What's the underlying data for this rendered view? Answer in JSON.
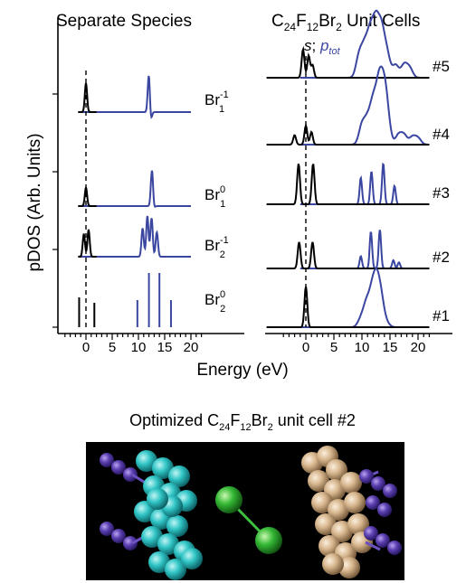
{
  "figure": {
    "left_panel_title": "Separate Species",
    "right_panel_title_parts": [
      "C",
      "24",
      "F",
      "12",
      "Br",
      "2",
      " Unit Cells"
    ],
    "series_annotation_s": "s",
    "series_annotation_sep": "; ",
    "series_annotation_p": "p",
    "series_annotation_p_sub": "tot",
    "ylabel": "pDOS (Arb. Units)",
    "xlabel": "Energy (eV)",
    "left_species": [
      {
        "base": "Br",
        "sup": "-1",
        "sub": "1"
      },
      {
        "base": "Br",
        "sup": "0",
        "sub": "1"
      },
      {
        "base": "Br",
        "sup": "-1",
        "sub": "2"
      },
      {
        "base": "Br",
        "sup": "0",
        "sub": "2"
      }
    ],
    "right_cells": [
      "#5",
      "#4",
      "#3",
      "#2",
      "#1"
    ],
    "structure_caption_parts": [
      "Optimized C",
      "24",
      "F",
      "12",
      "Br",
      "2",
      " unit cell #2"
    ]
  },
  "colors": {
    "s_series": "#000000",
    "p_series": "#3a46a0",
    "molecule_background": "#000000",
    "cyan_atoms": "#2fc4c4",
    "tan_atoms": "#d6b58c",
    "purple_atoms": "#5b3fb0",
    "green_atoms": "#34b834"
  },
  "chart_data": [
    {
      "type": "line",
      "title": "Separate Species",
      "xlabel": "Energy (eV)",
      "ylabel": "pDOS (Arb. Units)",
      "xlim": [
        -5,
        25
      ],
      "x_ticks": [
        0,
        5,
        10,
        15,
        20
      ],
      "fermi_line_x": 0,
      "series_names": [
        "s",
        "p_tot"
      ],
      "panels": [
        {
          "label": "Br1^-1",
          "s_peaks": [
            [
              0,
              0.7
            ]
          ],
          "p_peaks": [
            [
              12,
              1.0
            ],
            [
              12.3,
              -0.3
            ]
          ]
        },
        {
          "label": "Br1^0",
          "s_peaks": [
            [
              0,
              0.45
            ]
          ],
          "p_peaks": [
            [
              12.6,
              1.0
            ],
            [
              12.8,
              -0.2
            ]
          ]
        },
        {
          "label": "Br2^-1",
          "s_peaks": [
            [
              -0.4,
              0.55
            ],
            [
              0.5,
              0.65
            ]
          ],
          "p_peaks": [
            [
              10.8,
              0.7
            ],
            [
              11.7,
              1.0
            ],
            [
              12.5,
              0.95
            ],
            [
              13.5,
              0.6
            ]
          ]
        },
        {
          "label": "Br2^0",
          "s_peaks": [
            [
              -1.3,
              0.55
            ],
            [
              1.6,
              0.45
            ]
          ],
          "p_peaks": [
            [
              9.8,
              0.5
            ],
            [
              12,
              1.0
            ],
            [
              14,
              1.0
            ],
            [
              16.2,
              0.5
            ]
          ]
        }
      ]
    },
    {
      "type": "line",
      "title": "C24F12Br2 Unit Cells",
      "xlabel": "Energy (eV)",
      "xlim": [
        -5,
        25
      ],
      "x_ticks": [
        0,
        5,
        10,
        15,
        20
      ],
      "fermi_line_x": 0,
      "series_names": [
        "s",
        "p_tot"
      ],
      "panels": [
        {
          "label": "#5",
          "s_peaks": [
            [
              -0.5,
              0.45
            ],
            [
              0.5,
              0.35
            ],
            [
              1.2,
              0.2
            ]
          ],
          "p_band": [
            [
              9.5,
              0.35
            ],
            [
              10.5,
              0.45
            ],
            [
              11.5,
              0.65
            ],
            [
              12.5,
              0.8
            ],
            [
              13.5,
              0.7
            ],
            [
              14.5,
              0.35
            ],
            [
              16,
              0.2
            ],
            [
              17.5,
              0.2
            ],
            [
              18.5,
              0.15
            ]
          ]
        },
        {
          "label": "#4",
          "s_peaks": [
            [
              -2,
              0.15
            ],
            [
              0,
              0.3
            ],
            [
              1,
              0.2
            ]
          ],
          "p_band": [
            [
              10,
              0.3
            ],
            [
              11,
              0.35
            ],
            [
              12,
              0.6
            ],
            [
              13,
              0.8
            ],
            [
              13.8,
              0.7
            ],
            [
              14.5,
              0.45
            ],
            [
              16.5,
              0.15
            ],
            [
              17.5,
              0.15
            ],
            [
              19,
              0.12
            ],
            [
              20,
              0.1
            ]
          ]
        },
        {
          "label": "#3",
          "s_peaks": [
            [
              -1.3,
              1.0
            ],
            [
              1.3,
              1.0
            ]
          ],
          "p_peaks": [
            [
              9.8,
              0.65
            ],
            [
              11.7,
              0.8
            ],
            [
              13.8,
              1.0
            ],
            [
              15.8,
              0.45
            ]
          ]
        },
        {
          "label": "#2",
          "s_peaks": [
            [
              -1.2,
              0.65
            ],
            [
              1.2,
              0.65
            ]
          ],
          "p_peaks": [
            [
              9.8,
              0.3
            ],
            [
              11.6,
              0.9
            ],
            [
              13.2,
              0.95
            ],
            [
              15.6,
              0.2
            ],
            [
              16.6,
              0.15
            ]
          ]
        },
        {
          "label": "#1",
          "s_peaks": [
            [
              0,
              1.0
            ]
          ],
          "p_band": [
            [
              9.8,
              0.2
            ],
            [
              10.8,
              0.55
            ],
            [
              11.8,
              0.75
            ],
            [
              12.6,
              0.95
            ],
            [
              13.4,
              0.65
            ],
            [
              14.4,
              0.1
            ]
          ]
        }
      ]
    }
  ]
}
